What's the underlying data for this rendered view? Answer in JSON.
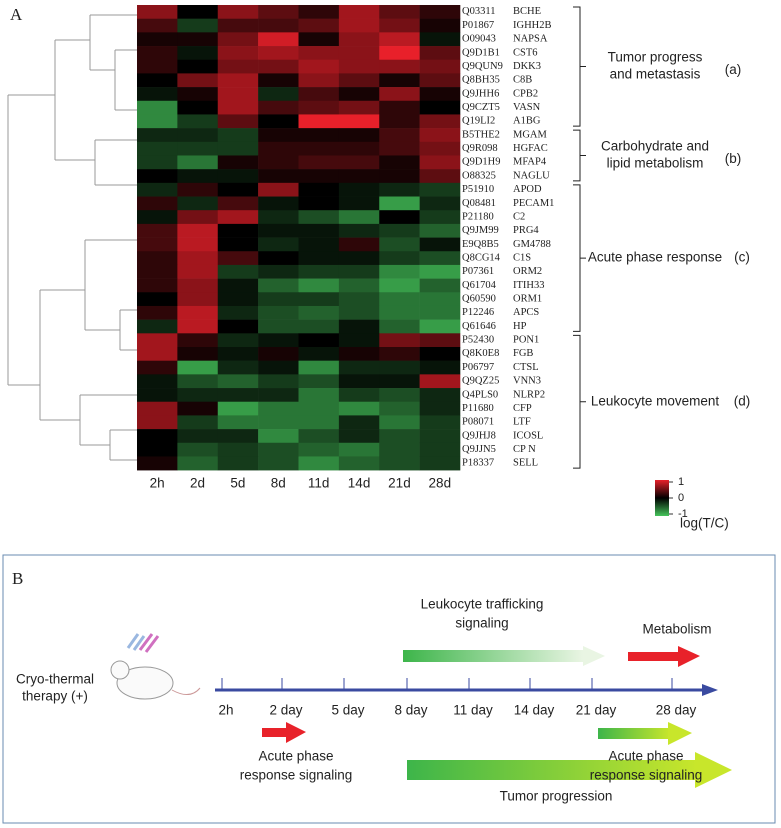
{
  "panel_a": {
    "label": "A",
    "columns": [
      "2h",
      "2d",
      "5d",
      "8d",
      "11d",
      "14d",
      "21d",
      "28d"
    ],
    "groups": [
      {
        "lines": [
          "Tumor progress",
          "and metastasis"
        ],
        "tag": "(a)",
        "rows": [
          {
            "id": "Q03311",
            "gene": "BCHE",
            "values": [
              0.6,
              0,
              0.6,
              0.4,
              0.2,
              0.7,
              0.4,
              0.2
            ]
          },
          {
            "id": "P01867",
            "gene": "IGHH2B",
            "values": [
              0.3,
              -0.3,
              0.3,
              0.3,
              0.4,
              0.7,
              0.5,
              0.1
            ]
          },
          {
            "id": "O09043",
            "gene": "NAPSA",
            "values": [
              0.1,
              0.1,
              0.5,
              0.9,
              0.1,
              0.6,
              0.8,
              -0.1
            ]
          },
          {
            "id": "Q9D1B1",
            "gene": "CST6",
            "values": [
              0.2,
              -0.1,
              0.6,
              0.7,
              0.6,
              0.6,
              1,
              0.4
            ]
          },
          {
            "id": "Q9QUN9",
            "gene": "DKK3",
            "values": [
              0.2,
              0,
              0.5,
              0.5,
              0.7,
              0.6,
              0.6,
              0.5
            ]
          },
          {
            "id": "Q8BH35",
            "gene": "C8B",
            "values": [
              0,
              0.5,
              0.7,
              0.1,
              0.6,
              0.4,
              0.1,
              0.4
            ]
          },
          {
            "id": "Q9JHH6",
            "gene": "CPB2",
            "values": [
              -0.1,
              0.1,
              0.7,
              -0.2,
              0.3,
              0.1,
              0.6,
              0.1
            ]
          },
          {
            "id": "Q9CZT5",
            "gene": "VASN",
            "values": [
              -0.7,
              0,
              0.7,
              0.3,
              0.4,
              0.5,
              0.2,
              0
            ]
          },
          {
            "id": "Q19LI2",
            "gene": "A1BG",
            "values": [
              -0.7,
              -0.3,
              0.4,
              0,
              1,
              1,
              0.2,
              0.5
            ]
          }
        ]
      },
      {
        "lines": [
          "Carbohydrate and",
          "lipid metabolism"
        ],
        "tag": "(b)",
        "rows": [
          {
            "id": "B5THE2",
            "gene": "MGAM",
            "values": [
              -0.2,
              -0.2,
              -0.3,
              0.1,
              0.1,
              0.1,
              0.3,
              0.6
            ]
          },
          {
            "id": "Q9R098",
            "gene": "HGFAC",
            "values": [
              -0.3,
              -0.3,
              -0.3,
              0.2,
              0.2,
              0.2,
              0.3,
              0.5
            ]
          },
          {
            "id": "Q9D1H9",
            "gene": "MFAP4",
            "values": [
              -0.3,
              -0.6,
              0.1,
              0.2,
              0.3,
              0.3,
              0.1,
              0.6
            ]
          },
          {
            "id": "O88325",
            "gene": "NAGLU",
            "values": [
              0,
              -0.1,
              -0.1,
              0.1,
              0.1,
              0.1,
              0.1,
              0.4
            ]
          }
        ]
      },
      {
        "lines": [
          "Acute phase response"
        ],
        "tag": "(c)",
        "rows": [
          {
            "id": "P51910",
            "gene": "APOD",
            "values": [
              -0.2,
              0.2,
              0,
              0.6,
              0,
              -0.1,
              -0.2,
              -0.3
            ]
          },
          {
            "id": "Q08481",
            "gene": "PECAM1",
            "values": [
              0.2,
              -0.2,
              0.3,
              -0.1,
              0,
              -0.1,
              -0.8,
              -0.2
            ]
          },
          {
            "id": "P21180",
            "gene": "C2",
            "values": [
              -0.1,
              0.5,
              0.7,
              -0.2,
              -0.4,
              -0.6,
              0,
              -0.3
            ]
          },
          {
            "id": "Q9JM99",
            "gene": "PRG4",
            "values": [
              0.3,
              0.8,
              0,
              -0.1,
              -0.1,
              -0.2,
              -0.3,
              -0.5
            ]
          },
          {
            "id": "E9Q8B5",
            "gene": "GM4788",
            "values": [
              0.3,
              0.8,
              0,
              -0.2,
              -0.1,
              0.2,
              -0.4,
              -0.1
            ]
          },
          {
            "id": "Q8CG14",
            "gene": "C1S",
            "values": [
              0.2,
              0.7,
              0.3,
              0,
              -0.1,
              -0.1,
              -0.3,
              -0.4
            ]
          },
          {
            "id": "P07361",
            "gene": "ORM2",
            "values": [
              0.2,
              0.7,
              -0.3,
              -0.2,
              -0.3,
              -0.3,
              -0.7,
              -0.8
            ]
          },
          {
            "id": "Q61704",
            "gene": "ITIH33",
            "values": [
              0.2,
              0.6,
              -0.1,
              -0.5,
              -0.7,
              -0.5,
              -0.8,
              -0.5
            ]
          },
          {
            "id": "Q60590",
            "gene": "ORM1",
            "values": [
              0,
              0.6,
              -0.1,
              -0.3,
              -0.3,
              -0.4,
              -0.6,
              -0.6
            ]
          },
          {
            "id": "P12246",
            "gene": "APCS",
            "values": [
              0.2,
              0.8,
              -0.2,
              -0.4,
              -0.5,
              -0.4,
              -0.6,
              -0.6
            ]
          },
          {
            "id": "Q61646",
            "gene": "HP",
            "values": [
              -0.2,
              0.8,
              0,
              -0.4,
              -0.4,
              -0.1,
              -0.5,
              -0.8
            ]
          }
        ]
      },
      {
        "lines": [
          "Leukocyte movement"
        ],
        "tag": "(d)",
        "rows": [
          {
            "id": "P52430",
            "gene": "PON1",
            "values": [
              0.7,
              0.2,
              -0.2,
              -0.1,
              0,
              -0.1,
              0.5,
              0.4
            ]
          },
          {
            "id": "Q8K0E8",
            "gene": "FGB",
            "values": [
              0.7,
              0.1,
              -0.1,
              0.1,
              -0.1,
              0.1,
              0.2,
              0
            ]
          },
          {
            "id": "P06797",
            "gene": "CTSL",
            "values": [
              0.2,
              -0.8,
              -0.2,
              -0.1,
              -0.7,
              -0.2,
              -0.2,
              -0.1
            ]
          },
          {
            "id": "Q9QZ25",
            "gene": "VNN3",
            "values": [
              -0.1,
              -0.4,
              -0.5,
              -0.3,
              -0.4,
              -0.1,
              -0.1,
              0.7
            ]
          },
          {
            "id": "Q4PLS0",
            "gene": "NLRP2",
            "values": [
              -0.1,
              -0.2,
              -0.2,
              -0.2,
              -0.6,
              -0.3,
              -0.4,
              -0.2
            ]
          },
          {
            "id": "P11680",
            "gene": "CFP",
            "values": [
              0.6,
              0.1,
              -0.8,
              -0.6,
              -0.6,
              -0.7,
              -0.5,
              -0.2
            ]
          },
          {
            "id": "P08071",
            "gene": "LTF",
            "values": [
              0.6,
              -0.3,
              -0.6,
              -0.6,
              -0.6,
              -0.2,
              -0.6,
              -0.3
            ]
          },
          {
            "id": "Q9JHJ8",
            "gene": "ICOSL",
            "values": [
              0,
              -0.2,
              -0.2,
              -0.7,
              -0.4,
              -0.2,
              -0.4,
              -0.3
            ]
          },
          {
            "id": "Q9JJN5",
            "gene": "CP N",
            "values": [
              0,
              -0.4,
              -0.3,
              -0.4,
              -0.5,
              -0.6,
              -0.4,
              -0.3
            ]
          },
          {
            "id": "P18337",
            "gene": "SELL",
            "values": [
              0.1,
              -0.5,
              -0.3,
              -0.4,
              -0.7,
              -0.5,
              -0.4,
              -0.3
            ]
          }
        ]
      }
    ],
    "scale": {
      "ticks": [
        1,
        0,
        -1
      ],
      "label": "log(T/C)"
    }
  },
  "panel_b": {
    "label": "B",
    "treatment": [
      "Cryo-thermal",
      "therapy (+)"
    ],
    "timepoints": [
      "2h",
      "2 day",
      "5 day",
      "8 day",
      "11 day",
      "14 day",
      "21 day",
      "28 day"
    ],
    "leukocyte": [
      "Leukocyte trafficking",
      "signaling"
    ],
    "metabolism": "Metabolism",
    "acute_early": [
      "Acute phase",
      "response signaling"
    ],
    "acute_late": [
      "Acute phase",
      "response signaling"
    ],
    "tumor": "Tumor progression"
  }
}
